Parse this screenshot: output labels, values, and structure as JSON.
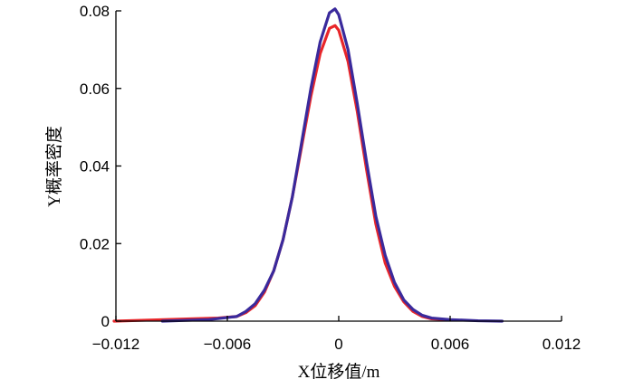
{
  "chart_data": {
    "type": "line",
    "xlabel": "X位移值/m",
    "ylabel": "Y概率密度",
    "xlim": [
      -0.012,
      0.012
    ],
    "ylim": [
      0,
      0.08
    ],
    "x_ticks": [
      -0.012,
      -0.006,
      0,
      0.006,
      0.012
    ],
    "x_tick_labels": [
      "−0.012",
      "−0.006",
      "0",
      "0.006",
      "0.012"
    ],
    "y_ticks": [
      0,
      0.02,
      0.04,
      0.06,
      0.08
    ],
    "y_tick_labels": [
      "0",
      "0.02",
      "0.04",
      "0.06",
      "0.08"
    ],
    "grid": false,
    "colors": {
      "red": "#e8262a",
      "blue": "#3a2a9c"
    },
    "series": [
      {
        "color": "#e8262a",
        "x": [
          -0.0121,
          -0.01,
          -0.008,
          -0.0065,
          -0.0055,
          -0.005,
          -0.0045,
          -0.004,
          -0.0035,
          -0.003,
          -0.0025,
          -0.002,
          -0.0015,
          -0.001,
          -0.0005,
          -0.0002,
          0.0,
          0.0005,
          0.001,
          0.0015,
          0.002,
          0.0025,
          0.003,
          0.0035,
          0.004,
          0.0045,
          0.005,
          0.006
        ],
        "y": [
          0.0,
          0.0003,
          0.0006,
          0.0008,
          0.0012,
          0.0022,
          0.004,
          0.0075,
          0.013,
          0.021,
          0.032,
          0.045,
          0.058,
          0.069,
          0.0755,
          0.0762,
          0.075,
          0.067,
          0.054,
          0.039,
          0.025,
          0.015,
          0.009,
          0.005,
          0.0025,
          0.0012,
          0.0006,
          0.0003
        ]
      },
      {
        "color": "#3a2a9c",
        "x": [
          -0.0095,
          -0.007,
          -0.0055,
          -0.005,
          -0.0045,
          -0.004,
          -0.0035,
          -0.003,
          -0.0025,
          -0.002,
          -0.0015,
          -0.001,
          -0.0005,
          -0.0002,
          0.0,
          0.0005,
          0.001,
          0.0015,
          0.002,
          0.0025,
          0.003,
          0.0035,
          0.004,
          0.0045,
          0.005,
          0.006,
          0.0075,
          0.0088
        ],
        "y": [
          0.0,
          0.0004,
          0.0012,
          0.0025,
          0.0045,
          0.008,
          0.013,
          0.021,
          0.032,
          0.046,
          0.06,
          0.072,
          0.0795,
          0.0805,
          0.079,
          0.07,
          0.056,
          0.041,
          0.027,
          0.017,
          0.01,
          0.0055,
          0.003,
          0.0015,
          0.0008,
          0.0004,
          0.0001,
          0.0
        ]
      }
    ]
  }
}
